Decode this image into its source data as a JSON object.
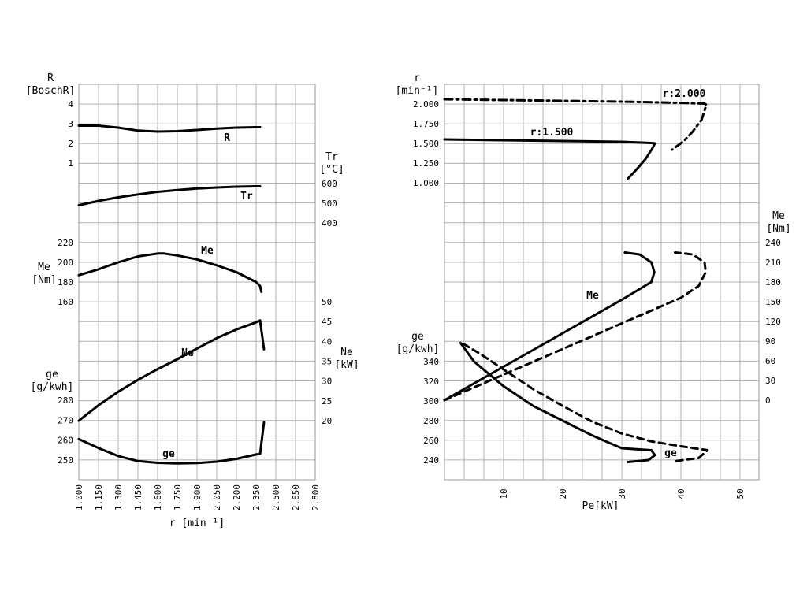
{
  "chart_data": [
    {
      "type": "line",
      "panel": "left",
      "xlabel": "r [min⁻¹]",
      "x_ticks": [
        "1.000",
        "1.150",
        "1.300",
        "1.450",
        "1.600",
        "1.750",
        "1.900",
        "2.050",
        "2.200",
        "2.350",
        "2.500",
        "2.650",
        "2.800"
      ],
      "xlim": [
        1000,
        2800
      ],
      "axes": {
        "R": {
          "label": "R",
          "unit": "[BoschR]",
          "ticks": [
            "1",
            "2",
            "3",
            "4"
          ],
          "range": [
            1,
            4
          ]
        },
        "Tr": {
          "label": "Tr",
          "unit": "[°C]",
          "ticks": [
            "400",
            "500",
            "600"
          ],
          "range": [
            400,
            600
          ]
        },
        "Me": {
          "label": "Me",
          "unit": "[Nm]",
          "ticks": [
            "160",
            "180",
            "200",
            "220"
          ],
          "range": [
            160,
            220
          ]
        },
        "Ne": {
          "label": "Ne",
          "unit": "[kW]",
          "ticks": [
            "20",
            "25",
            "30",
            "35",
            "40",
            "45",
            "50"
          ],
          "range": [
            20,
            50
          ]
        },
        "ge": {
          "label": "ge",
          "unit": "[g/kwh]",
          "ticks": [
            "250",
            "260",
            "270",
            "280"
          ],
          "range": [
            250,
            280
          ]
        }
      },
      "series": [
        {
          "name": "R",
          "axis": "R",
          "x": [
            1000,
            1150,
            1300,
            1450,
            1600,
            1750,
            1900,
            2050,
            2200,
            2350,
            2380
          ],
          "y": [
            2.9,
            2.9,
            2.8,
            2.65,
            2.6,
            2.62,
            2.68,
            2.75,
            2.8,
            2.82,
            2.82
          ]
        },
        {
          "name": "Tr",
          "axis": "Tr",
          "x": [
            1000,
            1150,
            1300,
            1450,
            1600,
            1750,
            1900,
            2050,
            2200,
            2350,
            2380
          ],
          "y": [
            490,
            512,
            530,
            545,
            558,
            567,
            575,
            580,
            584,
            586,
            586
          ]
        },
        {
          "name": "Me",
          "axis": "Me",
          "x": [
            1000,
            1150,
            1300,
            1450,
            1600,
            1650,
            1750,
            1900,
            2050,
            2200,
            2350,
            2380,
            2390
          ],
          "y": [
            187,
            193,
            200,
            206,
            209,
            209,
            207,
            203,
            197,
            190,
            180,
            176,
            170
          ]
        },
        {
          "name": "Ne",
          "axis": "Ne",
          "x": [
            1000,
            1150,
            1300,
            1450,
            1600,
            1750,
            1900,
            2050,
            2200,
            2350,
            2380,
            2410
          ],
          "y": [
            20,
            23.9,
            27.3,
            30.3,
            33,
            35.5,
            38.2,
            40.8,
            43,
            44.8,
            45.3,
            38
          ]
        },
        {
          "name": "ge",
          "axis": "ge",
          "x": [
            1000,
            1150,
            1300,
            1450,
            1600,
            1750,
            1900,
            2050,
            2200,
            2350,
            2380,
            2410
          ],
          "y": [
            260.5,
            256,
            252,
            249.5,
            248.6,
            248.3,
            248.5,
            249.2,
            250.6,
            252.8,
            253,
            269
          ]
        }
      ]
    },
    {
      "type": "line",
      "panel": "right",
      "xlabel": "Pe[kW]",
      "x_ticks": [
        "10",
        "20",
        "30",
        "40",
        "50"
      ],
      "xlim": [
        0,
        53
      ],
      "axes": {
        "r": {
          "label": "r",
          "unit": "[min⁻¹]",
          "ticks": [
            "1.000",
            "1.250",
            "1.500",
            "1.750",
            "2.000"
          ],
          "range": [
            1000,
            2000
          ]
        },
        "Me": {
          "label": "Me",
          "unit": "[Nm]",
          "ticks": [
            "0",
            "30",
            "60",
            "90",
            "120",
            "150",
            "180",
            "210",
            "240"
          ],
          "range": [
            0,
            240
          ]
        },
        "ge": {
          "label": "ge",
          "unit": "[g/kwh]",
          "ticks": [
            "240",
            "260",
            "280",
            "300",
            "320",
            "340"
          ],
          "range": [
            240,
            340
          ]
        }
      },
      "annotations": [
        "r:2.000",
        "r:1.500"
      ],
      "series": [
        {
          "style": "solid",
          "axis": "r",
          "x": [
            0,
            10,
            20,
            30,
            35,
            35.6,
            35.2,
            34,
            32.5,
            31
          ],
          "y": [
            1550,
            1540,
            1530,
            1520,
            1505,
            1500,
            1440,
            1300,
            1170,
            1050
          ]
        },
        {
          "style": "dash-dot",
          "axis": "r",
          "x": [
            0,
            10,
            20,
            30,
            40,
            44,
            44.3,
            43.5,
            42,
            40.5,
            38.5
          ],
          "y": [
            2060,
            2050,
            2040,
            2030,
            2015,
            2005,
            1990,
            1800,
            1650,
            1530,
            1420
          ]
        },
        {
          "style": "solid",
          "axis": "Me",
          "x": [
            0,
            10,
            20,
            30,
            35,
            35.5,
            35,
            33,
            30.5
          ],
          "y": [
            0,
            51,
            102,
            153,
            180,
            195,
            210,
            222,
            225
          ]
        },
        {
          "style": "dashed",
          "axis": "Me",
          "x": [
            0,
            10,
            20,
            30,
            40,
            43,
            44.2,
            44,
            42,
            39
          ],
          "y": [
            0,
            39,
            78,
            117,
            156,
            174,
            195,
            210,
            222,
            225
          ]
        },
        {
          "style": "solid",
          "axis": "ge",
          "x": [
            2.7,
            5,
            10,
            15,
            20,
            25,
            30,
            35,
            35.6,
            34.5,
            31
          ],
          "y": [
            359,
            340,
            315,
            295,
            280,
            265,
            252,
            250,
            245,
            240,
            238
          ]
        },
        {
          "style": "dashed",
          "axis": "ge",
          "x": [
            3.2,
            6,
            10,
            15,
            20,
            25,
            30,
            35,
            40,
            44.5,
            43,
            39
          ],
          "y": [
            358,
            348,
            332,
            312,
            295,
            279,
            267,
            259,
            254,
            250,
            242,
            239
          ]
        }
      ],
      "curve_labels": [
        "Me",
        "ge"
      ]
    }
  ]
}
